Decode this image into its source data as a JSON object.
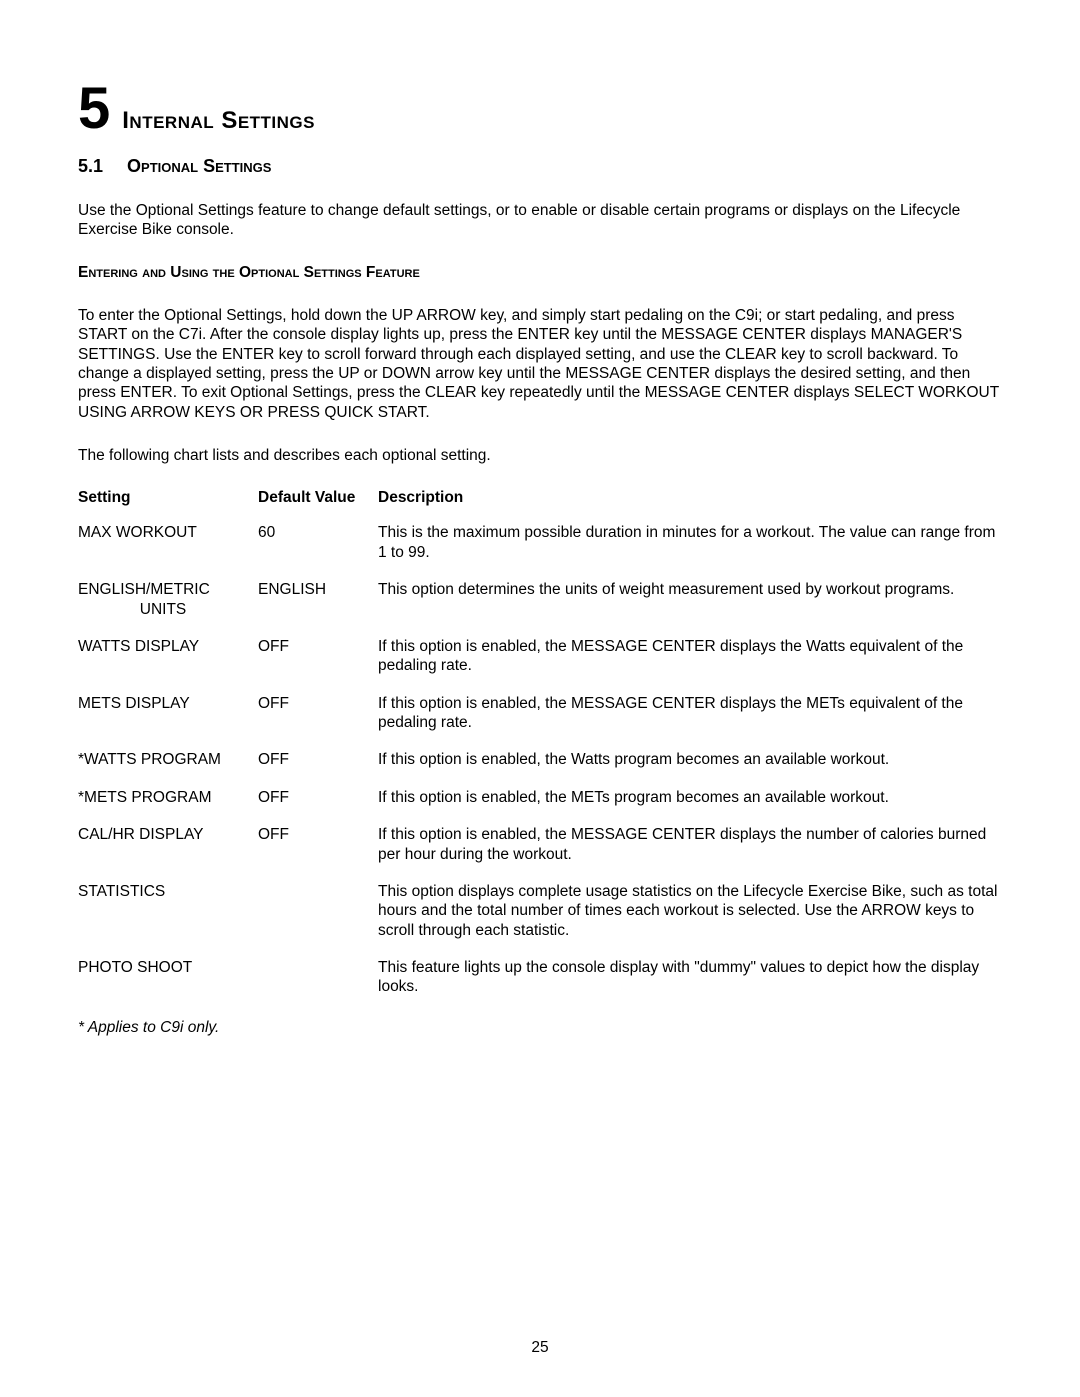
{
  "chapter": {
    "number": "5",
    "title": "Internal Settings"
  },
  "section": {
    "number": "5.1",
    "title": "Optional Settings"
  },
  "intro": "Use the Optional Settings feature to change default settings, or to enable or disable certain programs or displays on the Lifecycle Exercise Bike console.",
  "subheading": "Entering and Using the Optional Settings Feature",
  "instructions": "To enter the Optional Settings, hold down the UP ARROW key, and simply start pedaling on the C9i; or start pedaling, and press START on the C7i. After the console display lights up, press the ENTER key until the MESSAGE CENTER displays MANAGER'S SETTINGS. Use the ENTER key to scroll forward through each displayed setting, and use the CLEAR key to scroll backward. To change a displayed setting, press the UP or DOWN arrow key until the MESSAGE CENTER displays the desired setting, and then press ENTER. To exit Optional Settings, press the CLEAR key repeatedly until the MESSAGE CENTER displays SELECT WORKOUT USING ARROW KEYS OR PRESS QUICK START.",
  "chart_intro": "The following chart lists and describes each optional setting.",
  "table": {
    "headers": {
      "setting": "Setting",
      "default": "Default Value",
      "description": "Description"
    },
    "rows": [
      {
        "setting": "MAX WORKOUT",
        "default": "60",
        "description": "This is the maximum possible duration in minutes for a workout. The value can range from 1 to 99."
      },
      {
        "setting_line1": "ENGLISH/METRIC",
        "setting_line2": "UNITS",
        "default": "ENGLISH",
        "description": "This option determines the units of weight measurement used by workout programs."
      },
      {
        "setting": "WATTS DISPLAY",
        "default": "OFF",
        "description": "If this option is enabled, the MESSAGE CENTER displays the Watts equivalent of the pedaling rate."
      },
      {
        "setting": "METS DISPLAY",
        "default": "OFF",
        "description": "If this option is enabled, the MESSAGE CENTER displays the METs equivalent of the pedaling rate."
      },
      {
        "setting": "*WATTS PROGRAM",
        "default": "OFF",
        "description": "If this option is enabled, the Watts program becomes an available workout."
      },
      {
        "setting": "*METS PROGRAM",
        "default": "OFF",
        "description": "If this option is enabled, the METs program becomes an available workout."
      },
      {
        "setting": "CAL/HR DISPLAY",
        "default": "OFF",
        "description": "If this option is enabled, the MESSAGE CENTER displays the number of calories burned per hour during the workout."
      },
      {
        "setting": "STATISTICS",
        "default": "",
        "description": "This option displays complete usage statistics on  the Lifecycle Exercise Bike, such as total hours and the total number of times each workout is selected. Use the ARROW keys to scroll through each statistic."
      },
      {
        "setting": "PHOTO SHOOT",
        "default": "",
        "description": "This feature lights up the console display with \"dummy\" values to depict how the display looks."
      }
    ]
  },
  "footnote": "* Applies to C9i only.",
  "page_number": "25"
}
